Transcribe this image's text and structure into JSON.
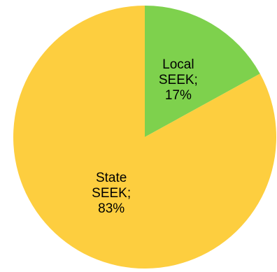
{
  "chart_data": {
    "type": "pie",
    "slices": [
      {
        "name": "Local SEEK",
        "value": 17,
        "label_lines": [
          "Local",
          "SEEK;",
          "17%"
        ],
        "color": "#7ED14D"
      },
      {
        "name": "State SEEK",
        "value": 83,
        "label_lines": [
          "State",
          "SEEK;",
          "83%"
        ],
        "color": "#FDCE3F"
      }
    ],
    "start": "12 o'clock",
    "direction": "clockwise",
    "legend": "none"
  }
}
